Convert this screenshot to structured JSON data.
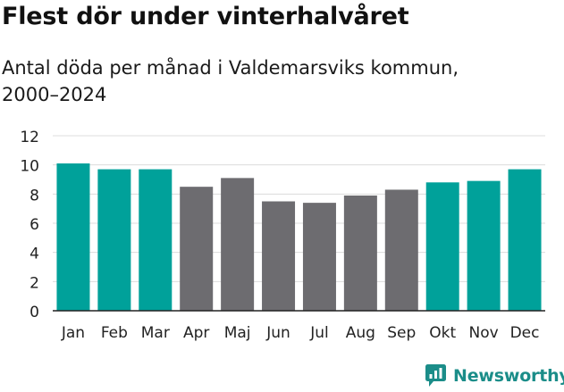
{
  "title": "Flest dör under vinterhalvåret",
  "subtitle": "Antal döda per månad i Valdemarsviks kommun, 2000–2024",
  "brand": "Newsworthy",
  "colors": {
    "winter": "#00a19a",
    "summer": "#6d6c70",
    "grid": "#dcdcdc",
    "axis": "#222222",
    "brand": "#1b8d89"
  },
  "chart_data": {
    "type": "bar",
    "title": "Flest dör under vinterhalvåret",
    "subtitle": "Antal döda per månad i Valdemarsviks kommun, 2000–2024",
    "xlabel": "",
    "ylabel": "",
    "ylim": [
      0,
      12
    ],
    "yticks": [
      0,
      2,
      4,
      6,
      8,
      10,
      12
    ],
    "grid": true,
    "categories": [
      "Jan",
      "Feb",
      "Mar",
      "Apr",
      "Maj",
      "Jun",
      "Jul",
      "Aug",
      "Sep",
      "Okt",
      "Nov",
      "Dec"
    ],
    "values": [
      10.1,
      9.7,
      9.7,
      8.5,
      9.1,
      7.5,
      7.4,
      7.9,
      8.3,
      8.8,
      8.9,
      9.7
    ],
    "highlight": [
      true,
      true,
      true,
      false,
      false,
      false,
      false,
      false,
      false,
      true,
      true,
      true
    ]
  }
}
